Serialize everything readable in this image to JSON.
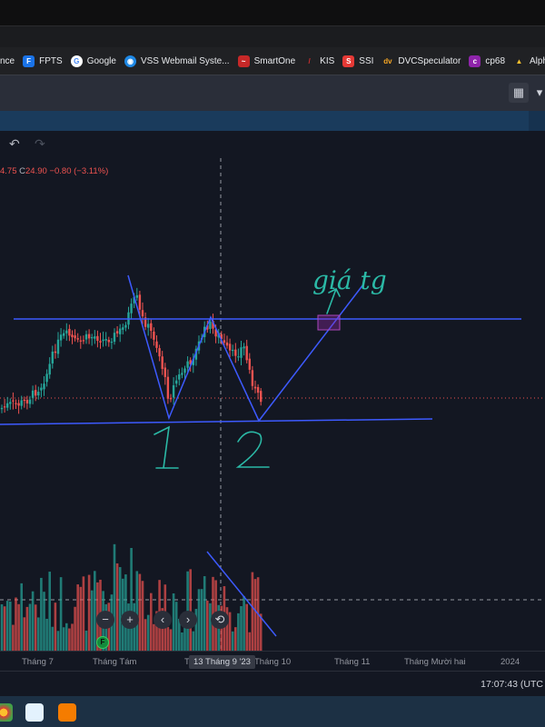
{
  "browser": {
    "bookmarks": [
      {
        "label": "nce",
        "icon": "blank-icon",
        "color": "#202124"
      },
      {
        "label": "FPTS",
        "icon": "fpts-icon",
        "color": "#1a73e8"
      },
      {
        "label": "Google",
        "icon": "google-icon",
        "color": "#ffffff"
      },
      {
        "label": "VSS Webmail Syste...",
        "icon": "vss-icon",
        "color": "#1e88e5"
      },
      {
        "label": "SmartOne",
        "icon": "smartone-icon",
        "color": "#c62828"
      },
      {
        "label": "KIS",
        "icon": "kis-icon",
        "color": "#d32f2f"
      },
      {
        "label": "SSI",
        "icon": "ssi-icon",
        "color": "#e53935"
      },
      {
        "label": "DVCSpeculator",
        "icon": "dvc-icon",
        "color": "#f9a825"
      },
      {
        "label": "cp68",
        "icon": "cp68-icon",
        "color": "#8e24aa"
      },
      {
        "label": "AlphaStock",
        "icon": "alphastock-icon",
        "color": "#fbc02d"
      }
    ]
  },
  "toolbar": {
    "undo_icon": "↶",
    "redo_icon": "↷"
  },
  "ohlc": {
    "low": "4.75",
    "close_key": "C",
    "close": "24.90",
    "change": "−0.80",
    "change_pct": "(−3.11%)"
  },
  "annotations": {
    "label_target": "giá tg",
    "label_bottom_1": "1",
    "label_bottom_2": "2"
  },
  "nav_controls": {
    "zoom_out": "−",
    "zoom_in": "+",
    "scroll_left": "‹",
    "scroll_right": "›",
    "reset": "⟲"
  },
  "event_marker": "F",
  "x_axis": {
    "labels": [
      "Tháng 7",
      "Tháng Tám",
      "T",
      "Tháng 10",
      "Tháng 11",
      "Tháng Mười hai",
      "2024"
    ],
    "crosshair_date": "13 Tháng 9 '23"
  },
  "status": {
    "time": "17:07:43 (UTC"
  },
  "colors": {
    "background": "#131722",
    "up": "#26a69a",
    "down": "#ef5350",
    "drawing": "#3d5afe",
    "annotation_text": "#2bb9a6"
  }
}
